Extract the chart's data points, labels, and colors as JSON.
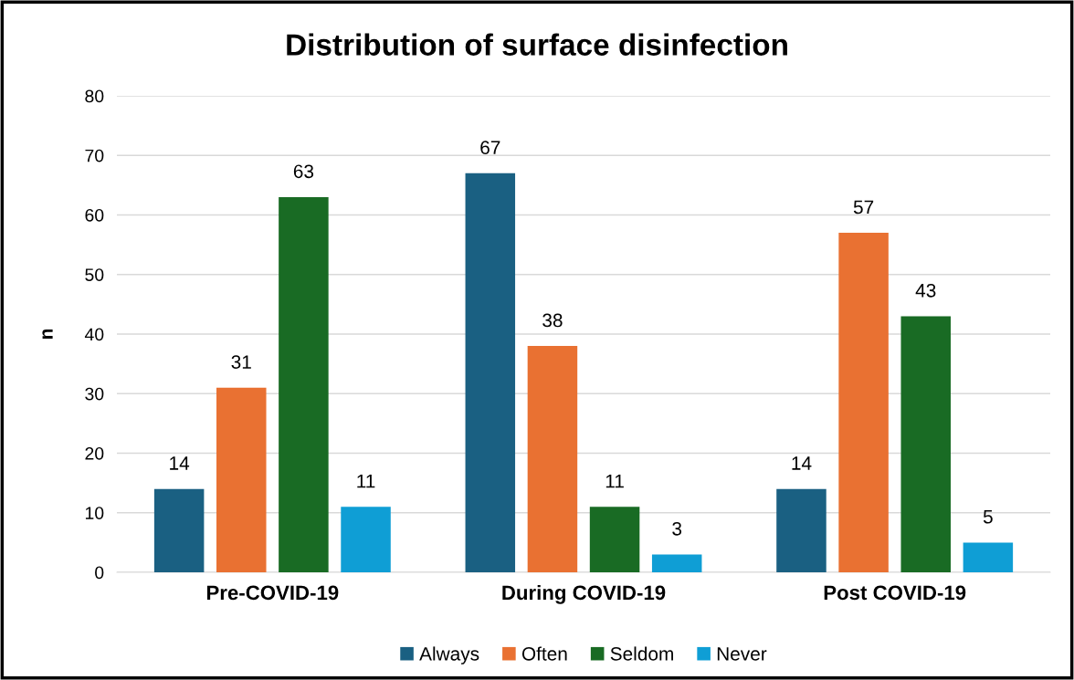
{
  "chart_data": {
    "type": "bar",
    "title": "Distribution of surface disinfection",
    "ylabel": "n",
    "categories": [
      "Pre-COVID-19",
      "During COVID-19",
      "Post COVID-19"
    ],
    "series": [
      {
        "name": "Always",
        "color": "#1a6082",
        "values": [
          14,
          67,
          14
        ]
      },
      {
        "name": "Often",
        "color": "#e97132",
        "values": [
          31,
          38,
          57
        ]
      },
      {
        "name": "Seldom",
        "color": "#196b24",
        "values": [
          63,
          11,
          43
        ]
      },
      {
        "name": "Never",
        "color": "#0f9ed5",
        "values": [
          11,
          3,
          5
        ]
      }
    ],
    "ylim": [
      0,
      80
    ],
    "yticks": [
      0,
      10,
      20,
      30,
      40,
      50,
      60,
      70,
      80
    ],
    "grid": "y",
    "legend": "bottom",
    "data_labels": true
  }
}
